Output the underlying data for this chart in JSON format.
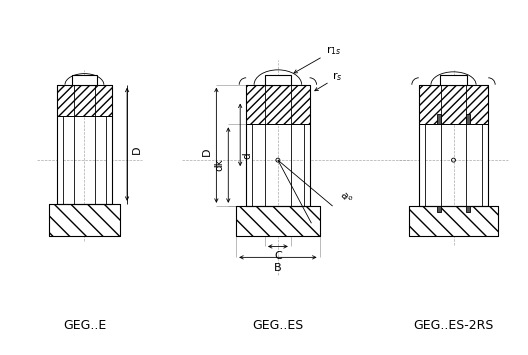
{
  "labels": {
    "left": "GEG..E",
    "center": "GEG..ES",
    "right": "GEG..ES-2RS"
  },
  "bg_color": "#ffffff",
  "line_color": "#000000",
  "fontsize_label": 9,
  "fontsize_dim": 7.5
}
